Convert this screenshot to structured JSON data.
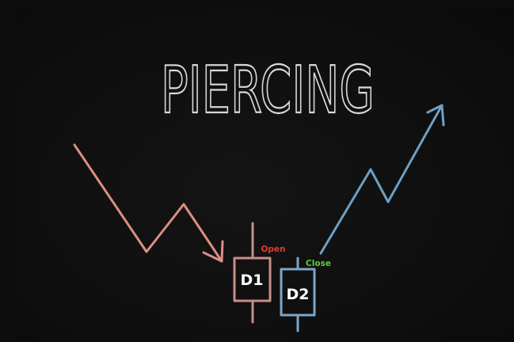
{
  "title": "PIERCING",
  "labels": {
    "d1": "D1",
    "d2": "D2",
    "open": "Open",
    "close": "Close"
  },
  "colors": {
    "board": "#0f0f0f",
    "title_chalk": "#d9d9d9",
    "downtrend": "#d98f86",
    "uptrend": "#6d9fc4",
    "d1_candle": "#c98e85",
    "d2_candle": "#7ba7c7",
    "open_label": "#e53b2f",
    "close_label": "#58d23a",
    "candle_label": "#ffffff"
  }
}
